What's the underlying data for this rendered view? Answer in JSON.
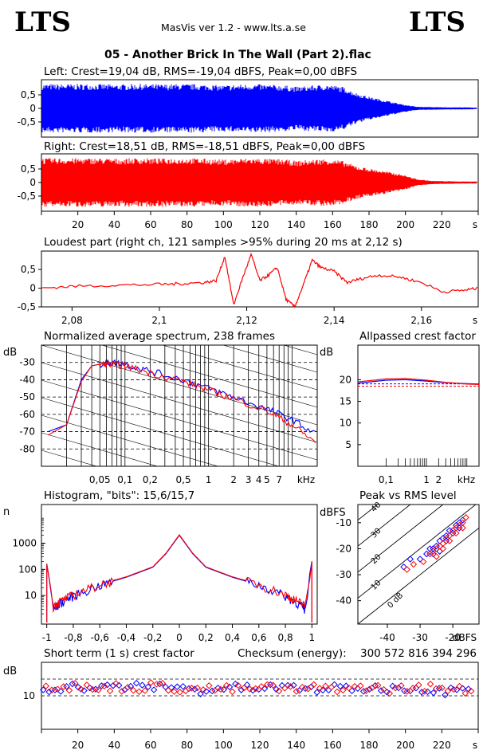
{
  "header": {
    "logo_left": "LTS",
    "logo_right": "LTS",
    "app": "MasVis ver 1.2 - www.lts.a.se",
    "file": "05 - Another Brick In The Wall (Part 2).flac"
  },
  "colors": {
    "left": "#0000ff",
    "right": "#ff0000"
  },
  "chart_data": [
    {
      "id": "left",
      "type": "line",
      "title": "Left: Crest=19,04 dB, RMS=-19,04 dBFS, Peak=0,00 dBFS",
      "yticks": [
        "0,5",
        "0",
        "-0,5"
      ],
      "ylim": [
        -1,
        1
      ],
      "xlim": [
        0,
        240
      ],
      "envelope": [
        0.9,
        0.9,
        0.9,
        0.9,
        0.9,
        0.88,
        0.9,
        0.9,
        0.89,
        0.9,
        0.9,
        0.88,
        0.85,
        0.88,
        0.9,
        0.88,
        0.86,
        0.8,
        0.85,
        0.88,
        0.8,
        0.55,
        0.4,
        0.28,
        0.15,
        0.06,
        0.05,
        0.04,
        0.04,
        0.03
      ]
    },
    {
      "id": "right",
      "type": "line",
      "title": "Right: Crest=18,51 dB, RMS=-18,51 dBFS, Peak=0,00 dBFS",
      "yticks": [
        "0,5",
        "0",
        "-0,5"
      ],
      "ylim": [
        -1,
        1
      ],
      "xlim": [
        0,
        240
      ],
      "xticks": [
        "20",
        "40",
        "60",
        "80",
        "100",
        "120",
        "140",
        "160",
        "180",
        "200",
        "220",
        "s"
      ],
      "envelope": [
        0.9,
        0.9,
        0.9,
        0.9,
        0.9,
        0.88,
        0.9,
        0.9,
        0.89,
        0.9,
        0.9,
        0.88,
        0.85,
        0.88,
        0.9,
        0.88,
        0.86,
        0.8,
        0.85,
        0.88,
        0.8,
        0.6,
        0.5,
        0.4,
        0.3,
        0.12,
        0.06,
        0.05,
        0.04,
        0.04
      ]
    },
    {
      "id": "loudest",
      "type": "line",
      "title": "Loudest part (right ch, 121 samples >95% during 20 ms at 2,12 s)",
      "yticks": [
        "0,5",
        "0",
        "-0,5"
      ],
      "xticks": [
        "2,08",
        "2,1",
        "2,12",
        "2,14",
        "2,16",
        "s"
      ],
      "xlim": [
        2.073,
        2.173
      ],
      "ylim": [
        -0.5,
        0.95
      ],
      "x": [
        2.073,
        2.08,
        2.09,
        2.1,
        2.105,
        2.11,
        2.113,
        2.115,
        2.117,
        2.119,
        2.121,
        2.123,
        2.125,
        2.127,
        2.129,
        2.131,
        2.133,
        2.135,
        2.137,
        2.14,
        2.143,
        2.146,
        2.15,
        2.155,
        2.16,
        2.165,
        2.17,
        2.173
      ],
      "values": [
        0.0,
        0.05,
        0.08,
        0.1,
        0.12,
        0.15,
        0.2,
        0.85,
        -0.45,
        0.25,
        0.9,
        0.2,
        0.35,
        0.55,
        -0.3,
        -0.5,
        0.1,
        0.75,
        0.55,
        0.45,
        0.15,
        0.25,
        0.35,
        0.3,
        0.15,
        -0.1,
        -0.05,
        0.0
      ]
    },
    {
      "id": "spectrum",
      "type": "line",
      "title": "Normalized average spectrum, 238 frames",
      "ylabel": "dB",
      "yticks": [
        "-30",
        "-40",
        "-50",
        "-60",
        "-70",
        "-80"
      ],
      "xticks": [
        "0,05",
        "0,1",
        "0,2",
        "0,5",
        "1",
        "2",
        "3",
        "4",
        "5",
        "7",
        "kHz"
      ],
      "xlim": [
        0.01,
        20
      ],
      "ylim": [
        -90,
        -20
      ],
      "x": [
        0.012,
        0.02,
        0.03,
        0.04,
        0.05,
        0.07,
        0.1,
        0.2,
        0.5,
        1,
        2,
        5,
        10,
        20
      ],
      "series": [
        {
          "values": [
            -70,
            -66,
            -40,
            -32,
            -31,
            -30,
            -31,
            -35,
            -40,
            -45,
            -50,
            -57,
            -63,
            -72
          ]
        },
        {
          "values": [
            -72,
            -66,
            -41,
            -32,
            -31,
            -31,
            -32,
            -36,
            -41,
            -46,
            -51,
            -58,
            -66,
            -77
          ]
        }
      ]
    },
    {
      "id": "allpass",
      "type": "line",
      "title": "Allpassed crest factor",
      "ylabel": "dB",
      "yticks": [
        "20",
        "15",
        "10",
        "5"
      ],
      "xticks": [
        "0,1",
        "1",
        "2",
        "kHz"
      ],
      "xlim": [
        0.02,
        20
      ],
      "ylim": [
        0,
        28
      ],
      "x": [
        0.02,
        0.05,
        0.1,
        0.3,
        1,
        3,
        10,
        20
      ],
      "series": [
        {
          "values": [
            19.2,
            19.6,
            19.9,
            20.0,
            19.7,
            19.3,
            19.1,
            19.0
          ]
        },
        {
          "values": [
            19.5,
            19.9,
            20.2,
            20.3,
            19.9,
            19.4,
            19.0,
            18.9
          ]
        }
      ],
      "reference": [
        19.04,
        18.51
      ]
    },
    {
      "id": "histogram",
      "type": "line",
      "title": "Histogram, \"bits\": 15,6/15,7",
      "ylabel": "n",
      "yticks": [
        "1000",
        "100",
        "10"
      ],
      "xticks": [
        "-1",
        "-0,8",
        "-0,6",
        "-0,4",
        "-0,2",
        "0",
        "0,2",
        "0,4",
        "0,6",
        "0,8",
        "1"
      ],
      "xlim": [
        -1.04,
        1.04
      ],
      "ylim": [
        1,
        30000
      ],
      "x": [
        -1.0,
        -0.95,
        -0.9,
        -0.8,
        -0.6,
        -0.4,
        -0.2,
        -0.1,
        0,
        0.1,
        0.2,
        0.4,
        0.6,
        0.8,
        0.9,
        0.95,
        1.0
      ],
      "series": [
        {
          "values": [
            200,
            3,
            5,
            10,
            25,
            50,
            120,
            400,
            2000,
            400,
            120,
            50,
            25,
            10,
            5,
            3,
            200
          ]
        },
        {
          "values": [
            200,
            4,
            6,
            11,
            27,
            52,
            125,
            420,
            2100,
            420,
            125,
            52,
            27,
            11,
            6,
            4,
            200
          ]
        }
      ]
    },
    {
      "id": "peakrms",
      "type": "scatter",
      "title": "Peak vs RMS level",
      "ylabel": "dBFS",
      "xlabel": "dBFS",
      "yticks": [
        "-10",
        "-20",
        "-30",
        "-40"
      ],
      "xticks": [
        "-40",
        "-30",
        "-20"
      ],
      "diag_labels": [
        "40",
        "30",
        "20",
        "10",
        "0 dB"
      ],
      "xlim": [
        -49,
        -12
      ],
      "ylim": [
        -49,
        -3
      ],
      "series": [
        {
          "x": [
            -35,
            -33,
            -30,
            -28,
            -27,
            -26,
            -25,
            -24,
            -23,
            -22,
            -21,
            -20,
            -19,
            -18,
            -17,
            -24,
            -26,
            -22,
            -20,
            -18
          ],
          "values": [
            -27,
            -24,
            -24,
            -22,
            -20,
            -20,
            -19,
            -17,
            -16,
            -15,
            -13,
            -13,
            -11,
            -10,
            -9,
            -21,
            -22,
            -17,
            -14,
            -12
          ]
        },
        {
          "x": [
            -34,
            -32,
            -29,
            -27,
            -26,
            -25,
            -24,
            -23,
            -22,
            -21,
            -20,
            -19,
            -18,
            -17,
            -16,
            -23,
            -25,
            -21,
            -19,
            -17
          ],
          "values": [
            -28,
            -26,
            -25,
            -22,
            -21,
            -20,
            -19,
            -18,
            -16,
            -15,
            -13,
            -12,
            -11,
            -10,
            -8,
            -20,
            -23,
            -17,
            -14,
            -12
          ]
        }
      ]
    },
    {
      "id": "shortterm",
      "type": "scatter",
      "title": "Short term (1 s) crest factor",
      "checksum_label": "Checksum (energy):",
      "checksum_value": "300 572 816 394 296",
      "ylabel": "dB",
      "yticks": [
        "10"
      ],
      "xticks": [
        "20",
        "40",
        "60",
        "80",
        "100",
        "120",
        "140",
        "160",
        "180",
        "200",
        "220",
        "s"
      ],
      "xlim": [
        0,
        240
      ],
      "ylim": [
        0,
        20
      ],
      "x": [
        2,
        10,
        20,
        30,
        40,
        50,
        60,
        70,
        80,
        90,
        100,
        110,
        120,
        130,
        140,
        150,
        160,
        170,
        180,
        190,
        200,
        210,
        215,
        220,
        225,
        230,
        235
      ],
      "series": [
        {
          "values": [
            12.0,
            12.5,
            12.8,
            12.2,
            12.6,
            12.8,
            12.4,
            13.2,
            12.0,
            11.5,
            12.5,
            12.3,
            12.1,
            12.6,
            12.3,
            12.0,
            12.1,
            12.4,
            12.0,
            12.3,
            12.5,
            12.2,
            11.5,
            11.2,
            12.0,
            13.5,
            12.8
          ]
        },
        {
          "values": [
            13.5,
            12.0,
            13.0,
            11.7,
            12.8,
            12.0,
            12.9,
            12.6,
            11.8,
            12.2,
            12.0,
            11.9,
            12.5,
            12.2,
            11.6,
            12.3,
            12.5,
            12.0,
            12.6,
            11.8,
            12.1,
            12.6,
            12.4,
            11.5,
            12.4,
            12.8,
            11.2
          ]
        }
      ]
    }
  ]
}
